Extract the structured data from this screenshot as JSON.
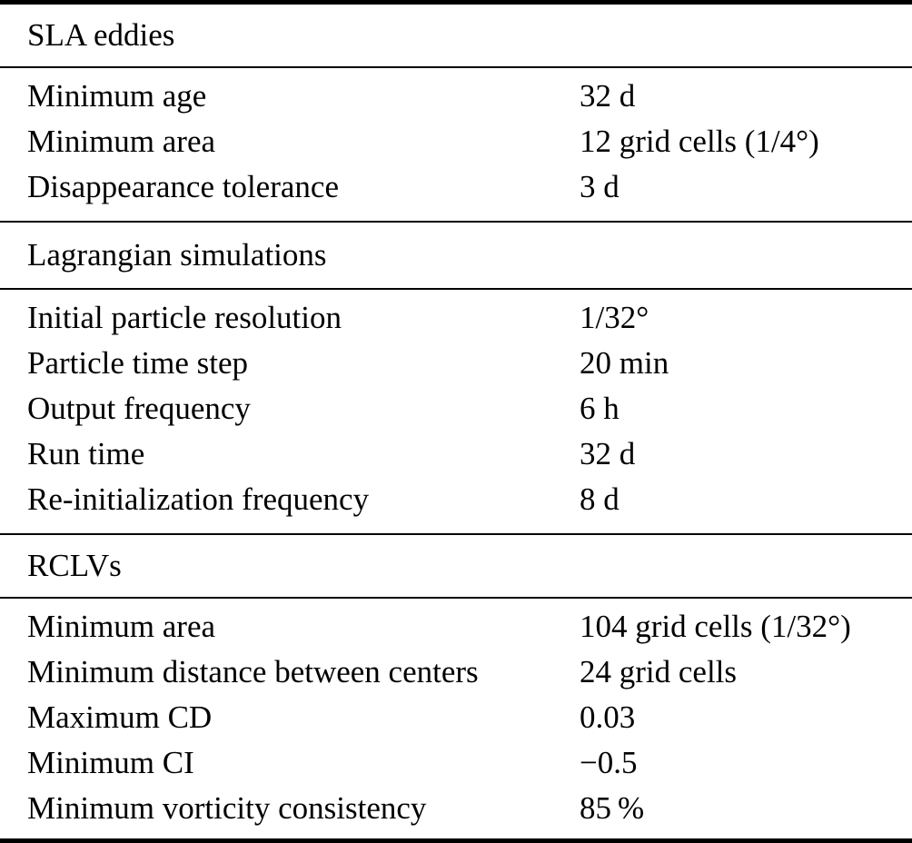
{
  "colors": {
    "text": "#000000",
    "background": "#ffffff",
    "rule": "#000000"
  },
  "table": {
    "sections": [
      {
        "header": "SLA eddies",
        "rows": [
          {
            "label": "Minimum age",
            "value": "32 d"
          },
          {
            "label": "Minimum area",
            "value": "12 grid cells (1/4°)"
          },
          {
            "label": "Disappearance tolerance",
            "value": "3 d"
          }
        ]
      },
      {
        "header": "Lagrangian simulations",
        "rows": [
          {
            "label": "Initial particle resolution",
            "value": "1/32°"
          },
          {
            "label": "Particle time step",
            "value": "20 min"
          },
          {
            "label": "Output frequency",
            "value": "6 h"
          },
          {
            "label": "Run time",
            "value": "32 d"
          },
          {
            "label": "Re-initialization frequency",
            "value": "8 d"
          }
        ]
      },
      {
        "header": "RCLVs",
        "rows": [
          {
            "label": "Minimum area",
            "value": "104 grid cells (1/32°)"
          },
          {
            "label": "Minimum distance between centers",
            "value": "24 grid cells"
          },
          {
            "label": "Maximum CD",
            "value": "0.03"
          },
          {
            "label": "Minimum CI",
            "value": "−0.5"
          },
          {
            "label": "Minimum vorticity consistency",
            "value": "85 %"
          }
        ]
      }
    ]
  }
}
